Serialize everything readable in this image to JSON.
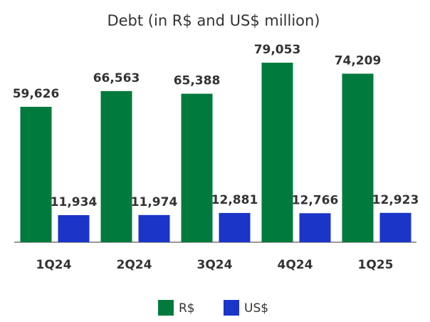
{
  "chart_data": {
    "type": "bar",
    "title": "Debt (in R$ and US$ million)",
    "categories": [
      "1Q24",
      "2Q24",
      "3Q24",
      "4Q24",
      "1Q25"
    ],
    "series": [
      {
        "name": "R$",
        "color": "#007a3d",
        "values": [
          59626,
          66563,
          65388,
          79053,
          74209
        ],
        "value_labels": [
          "59,626",
          "66,563",
          "65,388",
          "79,053",
          "74,209"
        ]
      },
      {
        "name": "US$",
        "color": "#1a35c8",
        "values": [
          11934,
          11974,
          12881,
          12766,
          12923
        ],
        "value_labels": [
          "11,934",
          "11,974",
          "12,881",
          "12,766",
          "12,923"
        ]
      }
    ]
  }
}
